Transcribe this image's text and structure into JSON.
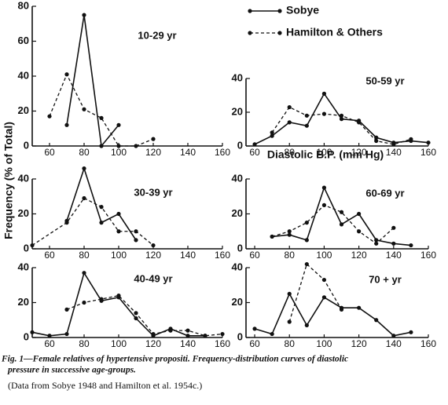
{
  "chart_data": [
    {
      "type": "line",
      "title": "10-29 yr",
      "xlim": [
        50,
        160
      ],
      "ylim": [
        0,
        80
      ],
      "xticks": [
        60,
        80,
        100,
        120,
        140,
        160
      ],
      "yticks": [
        0,
        20,
        40,
        60,
        80
      ],
      "series": [
        {
          "name": "Sobye",
          "color": "#111111",
          "dash": false,
          "x": [
            70,
            80,
            90,
            100
          ],
          "values": [
            12,
            75,
            0,
            12
          ]
        },
        {
          "name": "Hamilton & Others",
          "color": "#111111",
          "dash": true,
          "x": [
            60,
            70,
            80,
            90,
            100,
            110,
            120
          ],
          "values": [
            17,
            41,
            21,
            16,
            0,
            0,
            4
          ]
        }
      ]
    },
    {
      "type": "line",
      "title": "30-39 yr",
      "xlim": [
        50,
        160
      ],
      "ylim": [
        0,
        40
      ],
      "xticks": [
        60,
        80,
        100,
        120,
        140,
        160
      ],
      "yticks": [
        0,
        20,
        40
      ],
      "series": [
        {
          "color": "#111111",
          "dash": false,
          "x": [
            70,
            80,
            90,
            100,
            110
          ],
          "values": [
            16,
            46,
            15,
            20,
            5
          ]
        },
        {
          "color": "#111111",
          "dash": true,
          "x": [
            50,
            70,
            80,
            90,
            100,
            110,
            120
          ],
          "values": [
            2,
            15,
            29,
            24,
            10,
            10,
            2
          ]
        }
      ]
    },
    {
      "type": "line",
      "title": "40-49 yr",
      "xlim": [
        50,
        160
      ],
      "ylim": [
        0,
        40
      ],
      "xticks": [
        60,
        80,
        100,
        120,
        140,
        160
      ],
      "yticks": [
        0,
        20,
        40
      ],
      "series": [
        {
          "color": "#111111",
          "dash": false,
          "x": [
            50,
            60,
            70,
            80,
            90,
            100,
            110,
            120,
            130,
            140,
            150
          ],
          "values": [
            3,
            1,
            2,
            37,
            21,
            23,
            11,
            1,
            5,
            1,
            1
          ]
        },
        {
          "color": "#111111",
          "dash": true,
          "x": [
            70,
            80,
            90,
            100,
            110,
            120,
            130,
            140,
            150,
            160
          ],
          "values": [
            16,
            20,
            22,
            24,
            14,
            2,
            4,
            4,
            1,
            2
          ]
        }
      ]
    },
    {
      "type": "line",
      "title": "50-59 yr",
      "xlim": [
        55,
        160
      ],
      "ylim": [
        0,
        40
      ],
      "xticks": [
        60,
        80,
        100,
        120,
        140,
        160
      ],
      "yticks": [
        0,
        20,
        40
      ],
      "series": [
        {
          "color": "#111111",
          "dash": false,
          "x": [
            60,
            70,
            80,
            90,
            100,
            110,
            120,
            130,
            140,
            150,
            160
          ],
          "values": [
            1,
            6,
            14,
            12,
            31,
            16,
            15,
            5,
            2,
            3,
            2
          ]
        },
        {
          "color": "#111111",
          "dash": true,
          "x": [
            70,
            80,
            90,
            100,
            110,
            120,
            130,
            140,
            150
          ],
          "values": [
            8,
            23,
            18,
            19,
            18,
            14,
            3,
            1,
            4
          ]
        }
      ]
    },
    {
      "type": "line",
      "title": "60-69 yr",
      "xlim": [
        55,
        160
      ],
      "ylim": [
        0,
        40
      ],
      "xticks": [
        60,
        80,
        100,
        120,
        140,
        160
      ],
      "yticks": [
        0,
        20,
        40
      ],
      "series": [
        {
          "color": "#111111",
          "dash": false,
          "x": [
            70,
            80,
            90,
            100,
            110,
            120,
            130,
            140,
            150
          ],
          "values": [
            7,
            8,
            5,
            35,
            14,
            20,
            5,
            3,
            2
          ]
        },
        {
          "color": "#111111",
          "dash": true,
          "x": [
            70,
            80,
            90,
            100,
            110,
            120,
            130,
            140
          ],
          "values": [
            7,
            10,
            15,
            25,
            21,
            10,
            3,
            12
          ]
        }
      ]
    },
    {
      "type": "line",
      "title": "70 + yr",
      "xlim": [
        55,
        160
      ],
      "ylim": [
        0,
        40
      ],
      "xticks": [
        60,
        80,
        100,
        120,
        140,
        160
      ],
      "yticks": [
        0,
        20,
        40
      ],
      "series": [
        {
          "color": "#111111",
          "dash": false,
          "x": [
            60,
            70,
            80,
            90,
            100,
            110,
            120,
            130,
            140,
            150
          ],
          "values": [
            5,
            2,
            25,
            7,
            23,
            17,
            17,
            10,
            1,
            3
          ]
        },
        {
          "color": "#111111",
          "dash": true,
          "x": [
            80,
            90,
            100,
            110
          ],
          "values": [
            9,
            42,
            33,
            16
          ]
        }
      ]
    }
  ],
  "y_label": "Frequency  (% of Total)",
  "x_label": "Diastolic  B.P.  (mm Hg)",
  "caption": [
    "Fig. 1—Female relatives of hypertensive propositi. Frequency-distribution curves of diastolic",
    "pressure in successive age-groups.",
    "(Data from Sobye 1948 and Hamilton et al. 1954c.)"
  ]
}
